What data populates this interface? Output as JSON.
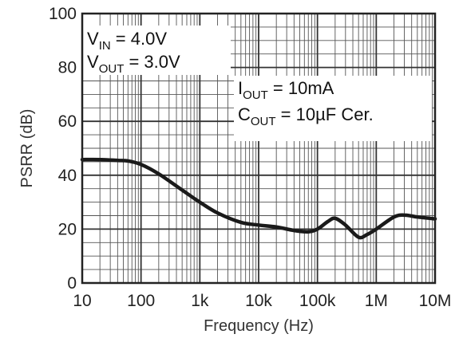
{
  "chart_data": {
    "type": "line",
    "xlabel": "Frequency (Hz)",
    "ylabel": "PSRR (dB)",
    "x_scale": "log",
    "xlim": [
      10,
      10000000
    ],
    "ylim": [
      0,
      100
    ],
    "grid": true,
    "x_ticks": [
      {
        "value": 10,
        "label": "10"
      },
      {
        "value": 100,
        "label": "100"
      },
      {
        "value": 1000,
        "label": "1k"
      },
      {
        "value": 10000,
        "label": "10k"
      },
      {
        "value": 100000,
        "label": "100k"
      },
      {
        "value": 1000000,
        "label": "1M"
      },
      {
        "value": 10000000,
        "label": "10M"
      }
    ],
    "y_ticks": [
      {
        "value": 0,
        "label": "0"
      },
      {
        "value": 20,
        "label": "20"
      },
      {
        "value": 40,
        "label": "40"
      },
      {
        "value": 60,
        "label": "60"
      },
      {
        "value": 80,
        "label": "80"
      },
      {
        "value": 100,
        "label": "100"
      }
    ],
    "annotations": {
      "vin": {
        "main": "V",
        "sub": "IN",
        "rest": " = 4.0V"
      },
      "vout": {
        "main": "V",
        "sub": "OUT",
        "rest": " = 3.0V"
      },
      "iout": {
        "main": "I",
        "sub": "OUT",
        "rest": " = 10mA"
      },
      "cout": {
        "main": "C",
        "sub": "OUT",
        "rest": " = 10µF Cer."
      }
    },
    "series": [
      {
        "color": "#1a1a1a",
        "x": [
          10,
          20,
          40,
          60,
          100,
          200,
          500,
          1000,
          2000,
          5000,
          10000,
          20000,
          40000,
          70000,
          100000,
          150000,
          200000,
          300000,
          500000,
          700000,
          1000000,
          2000000,
          3000000,
          5000000,
          10000000
        ],
        "y": [
          45.8,
          45.8,
          45.5,
          45.3,
          44.0,
          40.5,
          34.5,
          30.0,
          26.0,
          22.5,
          21.5,
          20.8,
          19.5,
          19.0,
          20.0,
          22.8,
          24.0,
          21.5,
          17.0,
          18.0,
          20.0,
          24.5,
          25.2,
          24.5,
          23.8
        ]
      }
    ]
  }
}
